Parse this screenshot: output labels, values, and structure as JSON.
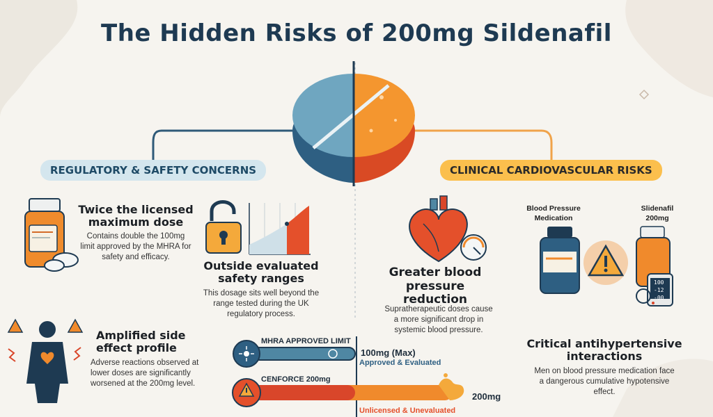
{
  "title": "The Hidden Risks of 200mg Sildenafil",
  "left_banner": "REGULATORY & SAFETY CONCERNS",
  "right_banner": "CLINICAL CARDIOVASCULAR RISKS",
  "left_items": [
    {
      "heading": "Twice the licensed maximum dose",
      "body": "Contains double the 100mg limit approved by the MHRA for safety and efficacy."
    },
    {
      "heading": "Outside evaluated safety ranges",
      "body": "This dosage sits well beyond the range tested during the UK regulatory process."
    },
    {
      "heading": "Amplified side effect profile",
      "body": "Adverse reactions observed at lower doses are significantly worsened at the 200mg level."
    }
  ],
  "right_items": [
    {
      "heading": "Greater blood pressure reduction",
      "body": "Supratherapeutic doses cause a more significant drop in systemic blood pressure."
    },
    {
      "heading": "Critical antihypertensive interactions",
      "body": "Men on blood pressure medication face a dangerous cumulative hypotensive effect."
    }
  ],
  "interaction_labels": {
    "left": "Blood Pressure Medication",
    "right": "Slidenafil 200mg"
  },
  "monitor_readout": [
    "100",
    "-12",
    "-00"
  ],
  "comparison": {
    "mhra": {
      "label": "MHRA APPROVED LIMIT",
      "value": "100mg (Max)",
      "status": "Approved & Evaluated"
    },
    "cenforce": {
      "label": "CENFORCE 200mg",
      "value": "200mg",
      "status": "Unlicensed & Unevaluated"
    }
  },
  "colors": {
    "navy": "#1e3a52",
    "teal": "#4f87a3",
    "orange": "#f08a2c",
    "red": "#d9462a",
    "amber": "#fbbf4d"
  }
}
